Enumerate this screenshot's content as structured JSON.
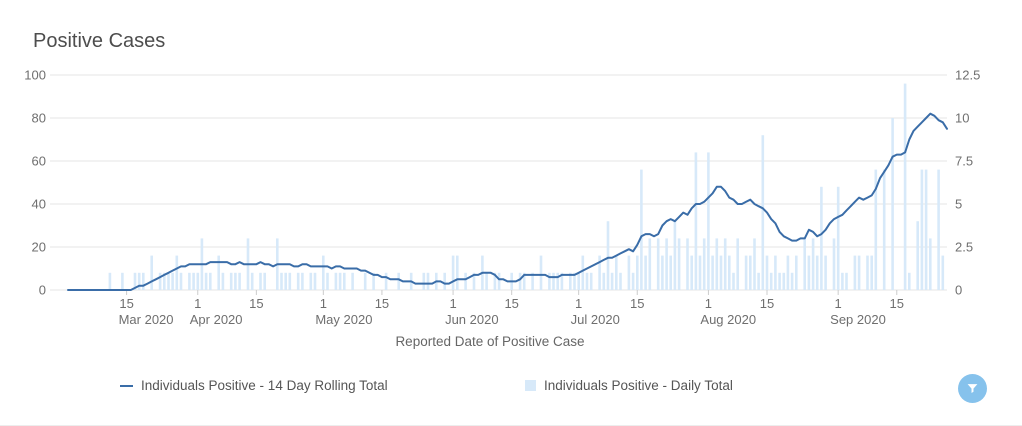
{
  "title": "Positive Cases",
  "chart_data": {
    "type": "line+bar",
    "x_axis": {
      "title": "Reported Date of Positive Case",
      "start_date": "2020-03-01",
      "days": 210,
      "ticks": [
        {
          "day": 14,
          "label": "15"
        },
        {
          "day": 31,
          "label": "1"
        },
        {
          "day": 45,
          "label": "15"
        },
        {
          "day": 61,
          "label": "1"
        },
        {
          "day": 75,
          "label": "15"
        },
        {
          "day": 92,
          "label": "1"
        },
        {
          "day": 106,
          "label": "15"
        },
        {
          "day": 122,
          "label": "1"
        },
        {
          "day": 136,
          "label": "15"
        },
        {
          "day": 153,
          "label": "1"
        },
        {
          "day": 167,
          "label": "15"
        },
        {
          "day": 184,
          "label": "1"
        },
        {
          "day": 198,
          "label": "15"
        }
      ],
      "month_labels": [
        {
          "day": 14,
          "label": "Mar 2020"
        },
        {
          "day": 31,
          "label": "Apr 2020"
        },
        {
          "day": 61,
          "label": "May 2020"
        },
        {
          "day": 92,
          "label": "Jun 2020"
        },
        {
          "day": 122,
          "label": "Jul 2020"
        },
        {
          "day": 153,
          "label": "Aug 2020"
        },
        {
          "day": 184,
          "label": "Sep 2020"
        }
      ]
    },
    "y_left": {
      "min": 0,
      "max": 100,
      "ticks": [
        {
          "v": 100,
          "label": "100"
        },
        {
          "v": 80,
          "label": "80"
        },
        {
          "v": 60,
          "label": "60"
        },
        {
          "v": 40,
          "label": "40"
        },
        {
          "v": 20,
          "label": "20"
        },
        {
          "v": 0,
          "label": "0"
        }
      ]
    },
    "y_right": {
      "min": 0,
      "max": 12.5,
      "ticks": [
        {
          "v": 12.5,
          "label": "12.5"
        },
        {
          "v": 10,
          "label": "10"
        },
        {
          "v": 7.5,
          "label": "7.5"
        },
        {
          "v": 5,
          "label": "5"
        },
        {
          "v": 2.5,
          "label": "2.5"
        },
        {
          "v": 0,
          "label": "0"
        }
      ]
    },
    "colors": {
      "grid": "#e4e4e4",
      "tick_mark": "#cccccc"
    },
    "series": [
      {
        "name": "Individuals Positive - 14 Day Rolling Total",
        "type": "line",
        "axis": "left",
        "color": "#3a6da8",
        "values": [
          0,
          0,
          0,
          0,
          0,
          0,
          0,
          0,
          0,
          0,
          0,
          0,
          0,
          0,
          0,
          0,
          1,
          2,
          2,
          3,
          4,
          5,
          6,
          7,
          8,
          9,
          10,
          11,
          11,
          12,
          12,
          12,
          12,
          12,
          13,
          13,
          13,
          13,
          13,
          12,
          12,
          13,
          12,
          12,
          12,
          12,
          13,
          12,
          12,
          11,
          12,
          12,
          12,
          12,
          11,
          11,
          12,
          12,
          11,
          11,
          11,
          11,
          11,
          10,
          11,
          11,
          10,
          10,
          10,
          10,
          9,
          9,
          8,
          7,
          7,
          6,
          6,
          5,
          5,
          5,
          4,
          4,
          4,
          3,
          3,
          3,
          3,
          3,
          4,
          4,
          3,
          3,
          4,
          5,
          5,
          5,
          6,
          7,
          7,
          8,
          8,
          8,
          7,
          5,
          5,
          4,
          4,
          4,
          5,
          7,
          7,
          7,
          7,
          7,
          7,
          6,
          6,
          6,
          7,
          7,
          7,
          7,
          8,
          9,
          10,
          11,
          12,
          13,
          14,
          15,
          15,
          16,
          17,
          18,
          19,
          18,
          21,
          25,
          26,
          26,
          25,
          26,
          30,
          32,
          33,
          32,
          34,
          36,
          35,
          38,
          40,
          40,
          41,
          43,
          45,
          48,
          48,
          46,
          43,
          42,
          40,
          40,
          41,
          42,
          40,
          39,
          38,
          36,
          33,
          31,
          27,
          25,
          24,
          23,
          23,
          24,
          24,
          28,
          27,
          25,
          26,
          28,
          31,
          33,
          34,
          35,
          37,
          39,
          41,
          43,
          42,
          43,
          44,
          47,
          52,
          55,
          58,
          62,
          63,
          63,
          64,
          70,
          74,
          76,
          78,
          80,
          82,
          81,
          79,
          78,
          75
        ]
      },
      {
        "name": "Individuals Positive - Daily Total",
        "type": "bar",
        "axis": "right",
        "color": "#d7e9f9",
        "values": [
          0,
          0,
          0,
          0,
          0,
          0,
          0,
          0,
          0,
          0,
          1,
          0,
          0,
          1,
          0,
          0,
          1,
          1,
          1,
          0,
          2,
          0,
          1,
          1,
          1,
          1,
          2,
          1,
          0,
          1,
          1,
          1,
          3,
          1,
          1,
          0,
          2,
          1,
          0,
          1,
          1,
          1,
          0,
          3,
          1,
          0,
          1,
          1,
          0,
          0,
          3,
          1,
          1,
          1,
          0,
          1,
          1,
          0,
          1,
          1,
          0,
          2,
          1,
          0,
          1,
          1,
          1,
          0,
          1,
          0,
          0,
          1,
          0,
          1,
          0,
          0,
          1,
          0,
          0,
          1,
          0,
          0,
          1,
          0,
          0,
          1,
          1,
          0,
          1,
          0,
          1,
          0,
          2,
          2,
          0,
          1,
          0,
          1,
          0,
          2,
          1,
          0,
          1,
          1,
          0,
          0,
          1,
          0,
          1,
          1,
          0,
          1,
          0,
          2,
          0,
          1,
          1,
          1,
          1,
          0,
          1,
          1,
          1,
          2,
          1,
          1,
          0,
          2,
          1,
          4,
          1,
          2,
          1,
          0,
          2,
          1,
          2,
          7,
          2,
          3,
          0,
          3,
          2,
          3,
          2,
          4,
          3,
          0,
          3,
          2,
          8,
          2,
          3,
          8,
          2,
          3,
          2,
          3,
          2,
          1,
          3,
          0,
          2,
          2,
          3,
          1,
          9,
          2,
          1,
          2,
          1,
          1,
          2,
          1,
          2,
          0,
          3,
          2,
          3,
          2,
          6,
          2,
          0,
          3,
          6,
          1,
          1,
          0,
          2,
          2,
          0,
          2,
          2,
          7,
          0,
          7,
          0,
          10,
          0,
          0,
          12,
          1,
          0,
          4,
          7,
          7,
          3,
          0,
          7,
          2,
          0
        ]
      }
    ]
  },
  "legend": {
    "items": [
      {
        "label": "Individuals Positive - 14 Day Rolling Total",
        "marker": "line-marker"
      },
      {
        "label": "Individuals Positive - Daily Total",
        "marker": "square-marker"
      }
    ]
  },
  "controls": {
    "filter_button": {
      "icon": "funnel-icon",
      "color": "#86c2ec"
    }
  }
}
